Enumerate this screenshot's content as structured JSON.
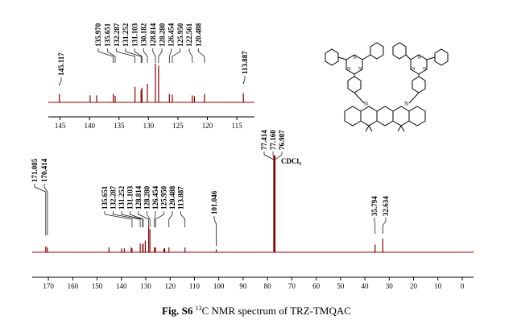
{
  "chart_data": [
    {
      "type": "line",
      "name": "main-spectrum",
      "title": "",
      "xlabel": "",
      "ylabel": "",
      "xlim": [
        174,
        -2
      ],
      "ticks": [
        170,
        160,
        150,
        140,
        130,
        120,
        110,
        100,
        90,
        80,
        70,
        60,
        50,
        40,
        30,
        20,
        10,
        0
      ],
      "peaks": [
        {
          "ppm": 171.085,
          "height": 0.06
        },
        {
          "ppm": 170.414,
          "height": 0.05
        },
        {
          "ppm": 145.117,
          "height": 0.05
        },
        {
          "ppm": 139.9,
          "height": 0.04
        },
        {
          "ppm": 138.8,
          "height": 0.04
        },
        {
          "ppm": 135.97,
          "height": 0.05
        },
        {
          "ppm": 135.651,
          "height": 0.04
        },
        {
          "ppm": 132.287,
          "height": 0.09
        },
        {
          "ppm": 131.252,
          "height": 0.08
        },
        {
          "ppm": 131.103,
          "height": 0.09
        },
        {
          "ppm": 130.182,
          "height": 0.12
        },
        {
          "ppm": 128.814,
          "height": 0.26
        },
        {
          "ppm": 128.28,
          "height": 0.24
        },
        {
          "ppm": 126.454,
          "height": 0.05
        },
        {
          "ppm": 125.95,
          "height": 0.05
        },
        {
          "ppm": 122.561,
          "height": 0.04
        },
        {
          "ppm": 122.2,
          "height": 0.04
        },
        {
          "ppm": 120.488,
          "height": 0.05
        },
        {
          "ppm": 113.887,
          "height": 0.05
        },
        {
          "ppm": 101.046,
          "height": 0.03
        },
        {
          "ppm": 77.414,
          "height": 1.0
        },
        {
          "ppm": 77.16,
          "height": 1.0
        },
        {
          "ppm": 76.907,
          "height": 1.0
        },
        {
          "ppm": 35.794,
          "height": 0.08
        },
        {
          "ppm": 32.634,
          "height": 0.14
        }
      ],
      "labels": {
        "group_a": [
          "171.085",
          "170.414"
        ],
        "group_b": [
          "135.651",
          "132.287",
          "131.252",
          "131.103",
          "128.814",
          "128.280",
          "126.454",
          "125.950",
          "120.488",
          "113.887"
        ],
        "group_c": [
          "101.046"
        ],
        "group_d": [
          "77.414",
          "77.160",
          "76.907"
        ],
        "group_e": [
          "35.794",
          "32.634"
        ]
      },
      "solvent_label": "CDCl",
      "solvent_subscript": "3"
    },
    {
      "type": "line",
      "name": "inset-spectrum",
      "xlim": [
        147,
        112
      ],
      "ticks": [
        145,
        140,
        135,
        130,
        125,
        120,
        115
      ],
      "peaks": [
        {
          "ppm": 145.117,
          "height": 0.22
        },
        {
          "ppm": 139.9,
          "height": 0.18
        },
        {
          "ppm": 138.8,
          "height": 0.18
        },
        {
          "ppm": 135.97,
          "height": 0.22
        },
        {
          "ppm": 135.651,
          "height": 0.17
        },
        {
          "ppm": 132.287,
          "height": 0.4
        },
        {
          "ppm": 131.252,
          "height": 0.32
        },
        {
          "ppm": 131.103,
          "height": 0.38
        },
        {
          "ppm": 130.182,
          "height": 0.48
        },
        {
          "ppm": 128.814,
          "height": 1.0
        },
        {
          "ppm": 128.28,
          "height": 0.95
        },
        {
          "ppm": 126.454,
          "height": 0.22
        },
        {
          "ppm": 125.95,
          "height": 0.2
        },
        {
          "ppm": 122.561,
          "height": 0.18
        },
        {
          "ppm": 122.2,
          "height": 0.16
        },
        {
          "ppm": 120.488,
          "height": 0.22
        },
        {
          "ppm": 113.887,
          "height": 0.24
        }
      ],
      "labels": {
        "single": [
          "145.117"
        ],
        "group": [
          "135.970",
          "135.651",
          "132.287",
          "131.252",
          "131.103",
          "130.182",
          "128.814",
          "128.280",
          "126.454",
          "125.950",
          "122.561",
          "120.488"
        ],
        "right": [
          "113.887"
        ]
      }
    }
  ],
  "caption": {
    "fig_label": "Fig. S6",
    "isotope_mass": "13",
    "text": "C NMR spectrum of TRZ-TMQAC"
  },
  "colors": {
    "spectrum": "#8b0000",
    "axis": "#000000"
  }
}
